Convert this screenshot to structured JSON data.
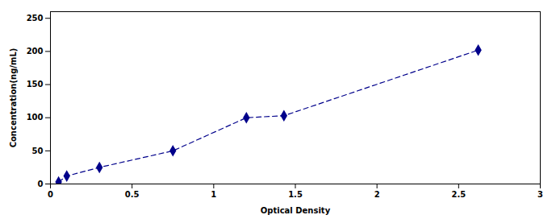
{
  "chart_data": {
    "type": "line",
    "x": [
      0.05,
      0.1,
      0.3,
      0.75,
      1.2,
      1.43,
      2.62
    ],
    "values": [
      3,
      12,
      25,
      50,
      100,
      103,
      202
    ],
    "color": "#00008B",
    "marker": "diamond",
    "line_style": "dashed",
    "xlabel": "Optical Density",
    "ylabel": "Concentration(ng/mL)",
    "xlim": [
      0,
      3
    ],
    "ylim": [
      0,
      260
    ],
    "xticks": [
      0,
      0.5,
      1,
      1.5,
      2,
      2.5,
      3
    ],
    "yticks": [
      0,
      50,
      100,
      150,
      200,
      250
    ]
  }
}
